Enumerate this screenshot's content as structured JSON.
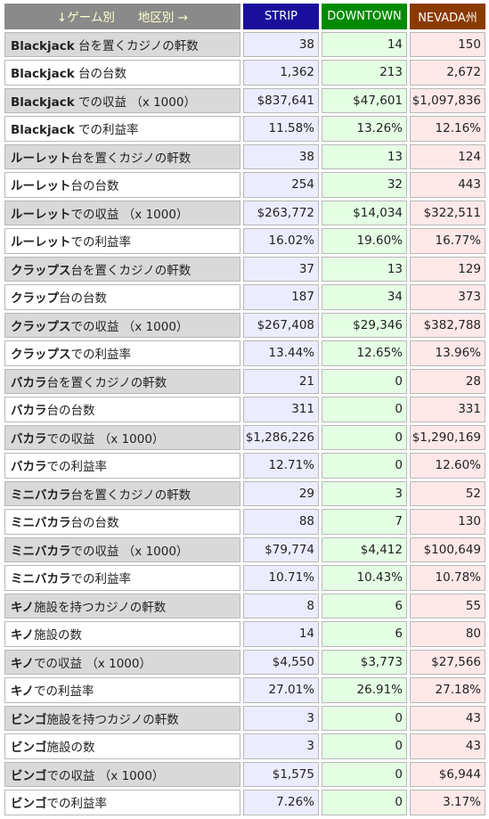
{
  "header": {
    "corner_left": "↓ゲーム別",
    "corner_right": "地区別 →",
    "columns": [
      "STRIP",
      "DOWNTOWN",
      "NEVADA州"
    ]
  },
  "colors": {
    "strip_header": "#1a0f9c",
    "downtown_header": "#008a00",
    "nevada_header": "#8b3a00",
    "strip_cell": "#ececff",
    "downtown_cell": "#e4ffe4",
    "nevada_cell": "#ffe8e8"
  },
  "rows": [
    {
      "game": "Blackjack",
      "suffix": " 台を置くカジノの軒数",
      "strip": "38",
      "downtown": "14",
      "nevada": "150"
    },
    {
      "game": "Blackjack",
      "suffix": " 台の台数",
      "strip": "1,362",
      "downtown": "213",
      "nevada": "2,672"
    },
    {
      "game": "Blackjack",
      "suffix": " での収益 （x 1000）",
      "strip": "$837,641",
      "downtown": "$47,601",
      "nevada": "$1,097,836"
    },
    {
      "game": "Blackjack",
      "suffix": " での利益率",
      "strip": "11.58%",
      "downtown": "13.26%",
      "nevada": "12.16%"
    },
    {
      "game": "ルーレット",
      "suffix": "台を置くカジノの軒数",
      "strip": "38",
      "downtown": "13",
      "nevada": "124"
    },
    {
      "game": "ルーレット",
      "suffix": "台の台数",
      "strip": "254",
      "downtown": "32",
      "nevada": "443"
    },
    {
      "game": "ルーレット",
      "suffix": "での収益 （x 1000）",
      "strip": "$263,772",
      "downtown": "$14,034",
      "nevada": "$322,511"
    },
    {
      "game": "ルーレット",
      "suffix": "での利益率",
      "strip": "16.02%",
      "downtown": "19.60%",
      "nevada": "16.77%"
    },
    {
      "game": "クラップス",
      "suffix": "台を置くカジノの軒数",
      "strip": "37",
      "downtown": "13",
      "nevada": "129"
    },
    {
      "game": "クラップ",
      "suffix": "台の台数",
      "strip": "187",
      "downtown": "34",
      "nevada": "373"
    },
    {
      "game": "クラップス",
      "suffix": "での収益 （x 1000）",
      "strip": "$267,408",
      "downtown": "$29,346",
      "nevada": "$382,788"
    },
    {
      "game": "クラップス",
      "suffix": "での利益率",
      "strip": "13.44%",
      "downtown": "12.65%",
      "nevada": "13.96%"
    },
    {
      "game": "バカラ",
      "suffix": "台を置くカジノの軒数",
      "strip": "21",
      "downtown": "0",
      "nevada": "28"
    },
    {
      "game": "バカラ",
      "suffix": "台の台数",
      "strip": "311",
      "downtown": "0",
      "nevada": "331"
    },
    {
      "game": "バカラ",
      "suffix": "での収益 （x 1000）",
      "strip": "$1,286,226",
      "downtown": "0",
      "nevada": "$1,290,169"
    },
    {
      "game": "バカラ",
      "suffix": "での利益率",
      "strip": "12.71%",
      "downtown": "0",
      "nevada": "12.60%"
    },
    {
      "game": "ミニバカラ",
      "suffix": "台を置くカジノの軒数",
      "strip": "29",
      "downtown": "3",
      "nevada": "52"
    },
    {
      "game": "ミニバカラ",
      "suffix": "台の台数",
      "strip": "88",
      "downtown": "7",
      "nevada": "130"
    },
    {
      "game": "ミニバカラ",
      "suffix": "での収益 （x 1000）",
      "strip": "$79,774",
      "downtown": "$4,412",
      "nevada": "$100,649"
    },
    {
      "game": "ミニバカラ",
      "suffix": "での利益率",
      "strip": "10.71%",
      "downtown": "10.43%",
      "nevada": "10.78%"
    },
    {
      "game": "キノ",
      "suffix": "施設を持つカジノの軒数",
      "strip": "8",
      "downtown": "6",
      "nevada": "55"
    },
    {
      "game": "キノ",
      "suffix": "施設の数",
      "strip": "14",
      "downtown": "6",
      "nevada": "80"
    },
    {
      "game": "キノ",
      "suffix": "での収益 （x 1000）",
      "strip": "$4,550",
      "downtown": "$3,773",
      "nevada": "$27,566"
    },
    {
      "game": "キノ",
      "suffix": "での利益率",
      "strip": "27.01%",
      "downtown": "26.91%",
      "nevada": "27.18%"
    },
    {
      "game": "ビンゴ",
      "suffix": "施設を持つカジノの軒数",
      "strip": "3",
      "downtown": "0",
      "nevada": "43"
    },
    {
      "game": "ビンゴ",
      "suffix": "施設の数",
      "strip": "3",
      "downtown": "0",
      "nevada": "43"
    },
    {
      "game": "ビンゴ",
      "suffix": "での収益 （x 1000）",
      "strip": "$1,575",
      "downtown": "0",
      "nevada": "$6,944"
    },
    {
      "game": "ビンゴ",
      "suffix": "での利益率",
      "strip": "7.26%",
      "downtown": "0",
      "nevada": "3.17%"
    }
  ]
}
